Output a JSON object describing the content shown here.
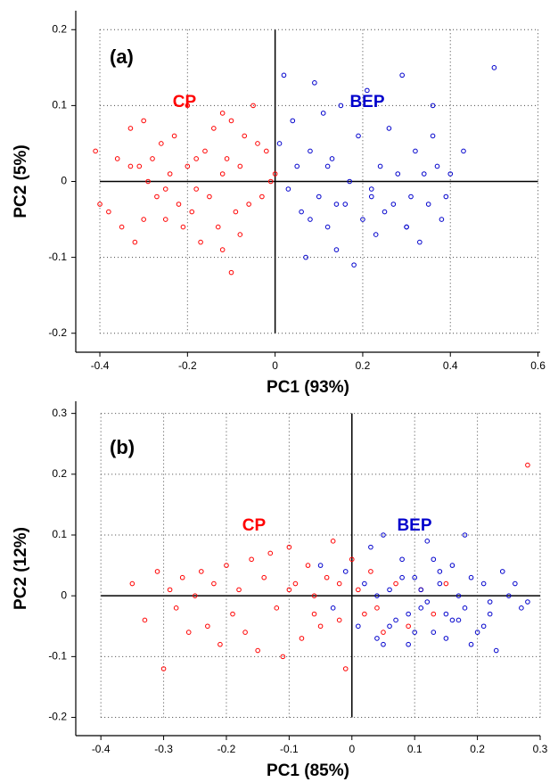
{
  "chart_data": [
    {
      "type": "scatter",
      "label": "(a)",
      "x_label": "PC1 (93%)",
      "y_label": "PC2 (5%)",
      "xlim": [
        -0.455,
        0.605
      ],
      "ylim": [
        -0.225,
        0.225
      ],
      "xticks": [
        -0.4,
        -0.2,
        0,
        0.2,
        0.4,
        0.6
      ],
      "yticks": [
        -0.2,
        -0.1,
        0,
        0.1,
        0.2
      ],
      "grid": true,
      "origin_lines": true,
      "series": [
        {
          "name": "CP",
          "color": "#ff0000",
          "x": [
            -0.41,
            -0.4,
            -0.38,
            -0.36,
            -0.35,
            -0.33,
            -0.32,
            -0.31,
            -0.3,
            -0.3,
            -0.29,
            -0.28,
            -0.27,
            -0.26,
            -0.25,
            -0.24,
            -0.23,
            -0.22,
            -0.21,
            -0.2,
            -0.2,
            -0.19,
            -0.18,
            -0.18,
            -0.17,
            -0.16,
            -0.15,
            -0.14,
            -0.13,
            -0.12,
            -0.12,
            -0.11,
            -0.1,
            -0.1,
            -0.09,
            -0.08,
            -0.07,
            -0.06,
            -0.05,
            -0.04,
            -0.03,
            -0.02,
            -0.01,
            0.0,
            -0.12,
            -0.25,
            -0.33,
            -0.08
          ],
          "values": [
            0.04,
            -0.03,
            -0.04,
            0.03,
            -0.06,
            0.07,
            -0.08,
            0.02,
            0.08,
            -0.05,
            0.0,
            0.03,
            -0.02,
            0.05,
            -0.05,
            0.01,
            0.06,
            -0.03,
            -0.06,
            0.02,
            0.1,
            -0.04,
            0.03,
            -0.01,
            -0.08,
            0.04,
            -0.02,
            0.07,
            -0.06,
            0.01,
            -0.09,
            0.03,
            -0.12,
            0.08,
            -0.04,
            0.02,
            0.06,
            -0.03,
            0.1,
            0.05,
            -0.02,
            0.04,
            0.0,
            0.01,
            0.09,
            -0.01,
            0.02,
            -0.07
          ]
        },
        {
          "name": "BEP",
          "color": "#0000cc",
          "x": [
            0.01,
            0.02,
            0.03,
            0.04,
            0.05,
            0.06,
            0.07,
            0.08,
            0.09,
            0.1,
            0.11,
            0.12,
            0.13,
            0.14,
            0.15,
            0.16,
            0.17,
            0.18,
            0.19,
            0.2,
            0.21,
            0.22,
            0.23,
            0.24,
            0.25,
            0.26,
            0.27,
            0.28,
            0.29,
            0.3,
            0.31,
            0.32,
            0.33,
            0.34,
            0.35,
            0.36,
            0.37,
            0.38,
            0.39,
            0.4,
            0.43,
            0.5,
            0.08,
            0.14,
            0.22,
            0.3,
            0.12,
            0.36
          ],
          "values": [
            0.05,
            0.14,
            -0.01,
            0.08,
            0.02,
            -0.04,
            -0.1,
            0.04,
            0.13,
            -0.02,
            0.09,
            -0.06,
            0.03,
            -0.09,
            0.1,
            -0.03,
            0.0,
            -0.11,
            0.06,
            -0.05,
            0.12,
            -0.01,
            -0.07,
            0.02,
            -0.04,
            0.07,
            -0.03,
            0.01,
            0.14,
            -0.06,
            -0.02,
            0.04,
            -0.08,
            0.01,
            -0.03,
            0.1,
            0.02,
            -0.05,
            -0.02,
            0.01,
            0.04,
            0.15,
            -0.05,
            -0.03,
            -0.02,
            -0.06,
            0.02,
            0.06
          ]
        }
      ]
    },
    {
      "type": "scatter",
      "label": "(b)",
      "x_label": "PC1 (85%)",
      "y_label": "PC2 (12%)",
      "xlim": [
        -0.44,
        0.3
      ],
      "ylim": [
        -0.23,
        0.32
      ],
      "xticks": [
        -0.4,
        -0.3,
        -0.2,
        -0.1,
        0,
        0.1,
        0.2,
        0.3
      ],
      "yticks": [
        -0.2,
        -0.1,
        0,
        0.1,
        0.2,
        0.3
      ],
      "grid": true,
      "origin_lines": true,
      "series": [
        {
          "name": "CP",
          "color": "#ff0000",
          "x": [
            -0.35,
            -0.33,
            -0.31,
            -0.3,
            -0.29,
            -0.28,
            -0.27,
            -0.26,
            -0.25,
            -0.24,
            -0.23,
            -0.22,
            -0.21,
            -0.2,
            -0.19,
            -0.18,
            -0.17,
            -0.16,
            -0.15,
            -0.14,
            -0.13,
            -0.12,
            -0.11,
            -0.1,
            -0.09,
            -0.08,
            -0.07,
            -0.06,
            -0.05,
            -0.04,
            -0.03,
            -0.02,
            -0.01,
            0.0,
            0.01,
            0.02,
            0.03,
            0.05,
            0.07,
            0.09,
            0.11,
            0.13,
            0.15,
            0.28,
            -0.1,
            -0.06,
            -0.02,
            0.04
          ],
          "values": [
            0.02,
            -0.04,
            0.04,
            -0.12,
            0.01,
            -0.02,
            0.03,
            -0.06,
            0.0,
            0.04,
            -0.05,
            0.02,
            -0.08,
            0.05,
            -0.03,
            0.01,
            -0.06,
            0.06,
            -0.09,
            0.03,
            0.07,
            -0.02,
            -0.1,
            0.08,
            0.02,
            -0.07,
            0.05,
            0.0,
            -0.05,
            0.03,
            0.09,
            -0.04,
            -0.12,
            0.06,
            0.01,
            -0.03,
            0.04,
            -0.06,
            0.02,
            -0.05,
            0.01,
            -0.03,
            0.02,
            0.215,
            0.01,
            -0.03,
            0.02,
            -0.02
          ]
        },
        {
          "name": "BEP",
          "color": "#0000cc",
          "x": [
            -0.05,
            -0.03,
            -0.01,
            0.01,
            0.02,
            0.03,
            0.04,
            0.05,
            0.06,
            0.07,
            0.08,
            0.09,
            0.1,
            0.11,
            0.12,
            0.13,
            0.14,
            0.15,
            0.16,
            0.17,
            0.18,
            0.19,
            0.2,
            0.21,
            0.22,
            0.23,
            0.24,
            0.25,
            0.27,
            0.28,
            0.06,
            0.08,
            0.1,
            0.12,
            0.14,
            0.16,
            0.18,
            0.05,
            0.11,
            0.15,
            0.19,
            0.21,
            0.04,
            0.09,
            0.13,
            0.17,
            0.22,
            0.26
          ],
          "values": [
            0.05,
            -0.02,
            0.04,
            -0.05,
            0.02,
            0.08,
            -0.07,
            0.1,
            0.01,
            -0.04,
            0.06,
            -0.08,
            0.03,
            -0.02,
            0.09,
            -0.06,
            0.02,
            -0.03,
            0.05,
            0.0,
            0.1,
            -0.08,
            -0.06,
            0.02,
            -0.03,
            -0.09,
            0.04,
            0.0,
            -0.02,
            -0.01,
            -0.05,
            0.03,
            -0.06,
            -0.01,
            0.04,
            -0.04,
            -0.02,
            -0.08,
            0.01,
            -0.07,
            0.03,
            -0.05,
            0.0,
            -0.03,
            0.06,
            -0.04,
            -0.01,
            0.02
          ]
        }
      ]
    }
  ]
}
